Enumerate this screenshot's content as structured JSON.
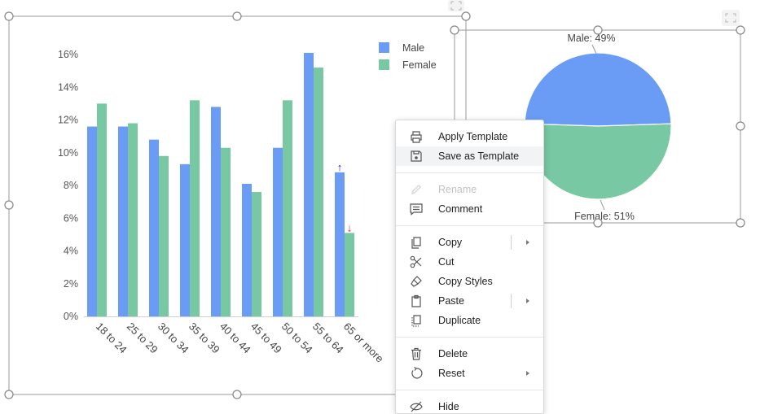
{
  "chart_data": [
    {
      "type": "bar",
      "categories": [
        "18 to 24",
        "25 to 29",
        "30 to 34",
        "35 to 39",
        "40 to 44",
        "45 to 49",
        "50 to 54",
        "55 to 64",
        "65 or more"
      ],
      "series": [
        {
          "name": "Male",
          "values": [
            11.6,
            11.6,
            10.8,
            9.3,
            12.8,
            8.1,
            10.3,
            16.1,
            8.8
          ]
        },
        {
          "name": "Female",
          "values": [
            13.0,
            11.8,
            9.8,
            13.2,
            10.3,
            7.6,
            13.2,
            15.2,
            5.1
          ]
        }
      ],
      "yticks": [
        "0%",
        "2%",
        "4%",
        "6%",
        "8%",
        "10%",
        "12%",
        "14%",
        "16%"
      ],
      "ylim": [
        0,
        16
      ],
      "legend": [
        "Male",
        "Female"
      ],
      "legend_position": "top-right",
      "annotations": {
        "up_arrow": "↑",
        "down_arrow": "↓"
      },
      "title": "",
      "xlabel": "",
      "ylabel": ""
    },
    {
      "type": "pie",
      "labels": [
        "Male",
        "Female"
      ],
      "values": [
        49,
        51
      ],
      "data_labels": [
        "Male: 49%",
        "Female: 51%"
      ]
    }
  ],
  "colors": {
    "male": "#6a9cf6",
    "female": "#77c8a3",
    "arrow_up": "#1a1acc",
    "arrow_down": "#e02020",
    "handle": "#8a8a8a"
  },
  "menu": {
    "items": [
      {
        "label": "Apply Template",
        "icon": "printer-icon",
        "enabled": true
      },
      {
        "label": "Save as Template",
        "icon": "save-icon",
        "enabled": true,
        "highlighted": true
      },
      {
        "label": "Rename",
        "icon": "pencil-icon",
        "enabled": false
      },
      {
        "label": "Comment",
        "icon": "comment-icon",
        "enabled": true
      },
      {
        "label": "Copy",
        "icon": "copy-icon",
        "enabled": true,
        "submenu": true
      },
      {
        "label": "Cut",
        "icon": "scissors-icon",
        "enabled": true
      },
      {
        "label": "Copy Styles",
        "icon": "paint-brush-icon",
        "enabled": true
      },
      {
        "label": "Paste",
        "icon": "clipboard-icon",
        "enabled": true,
        "submenu": true
      },
      {
        "label": "Duplicate",
        "icon": "duplicate-icon",
        "enabled": true
      },
      {
        "label": "Delete",
        "icon": "trash-icon",
        "enabled": true
      },
      {
        "label": "Reset",
        "icon": "reset-icon",
        "enabled": true,
        "submenu": true
      },
      {
        "label": "Hide",
        "icon": "hide-eye-icon",
        "enabled": true
      }
    ]
  }
}
